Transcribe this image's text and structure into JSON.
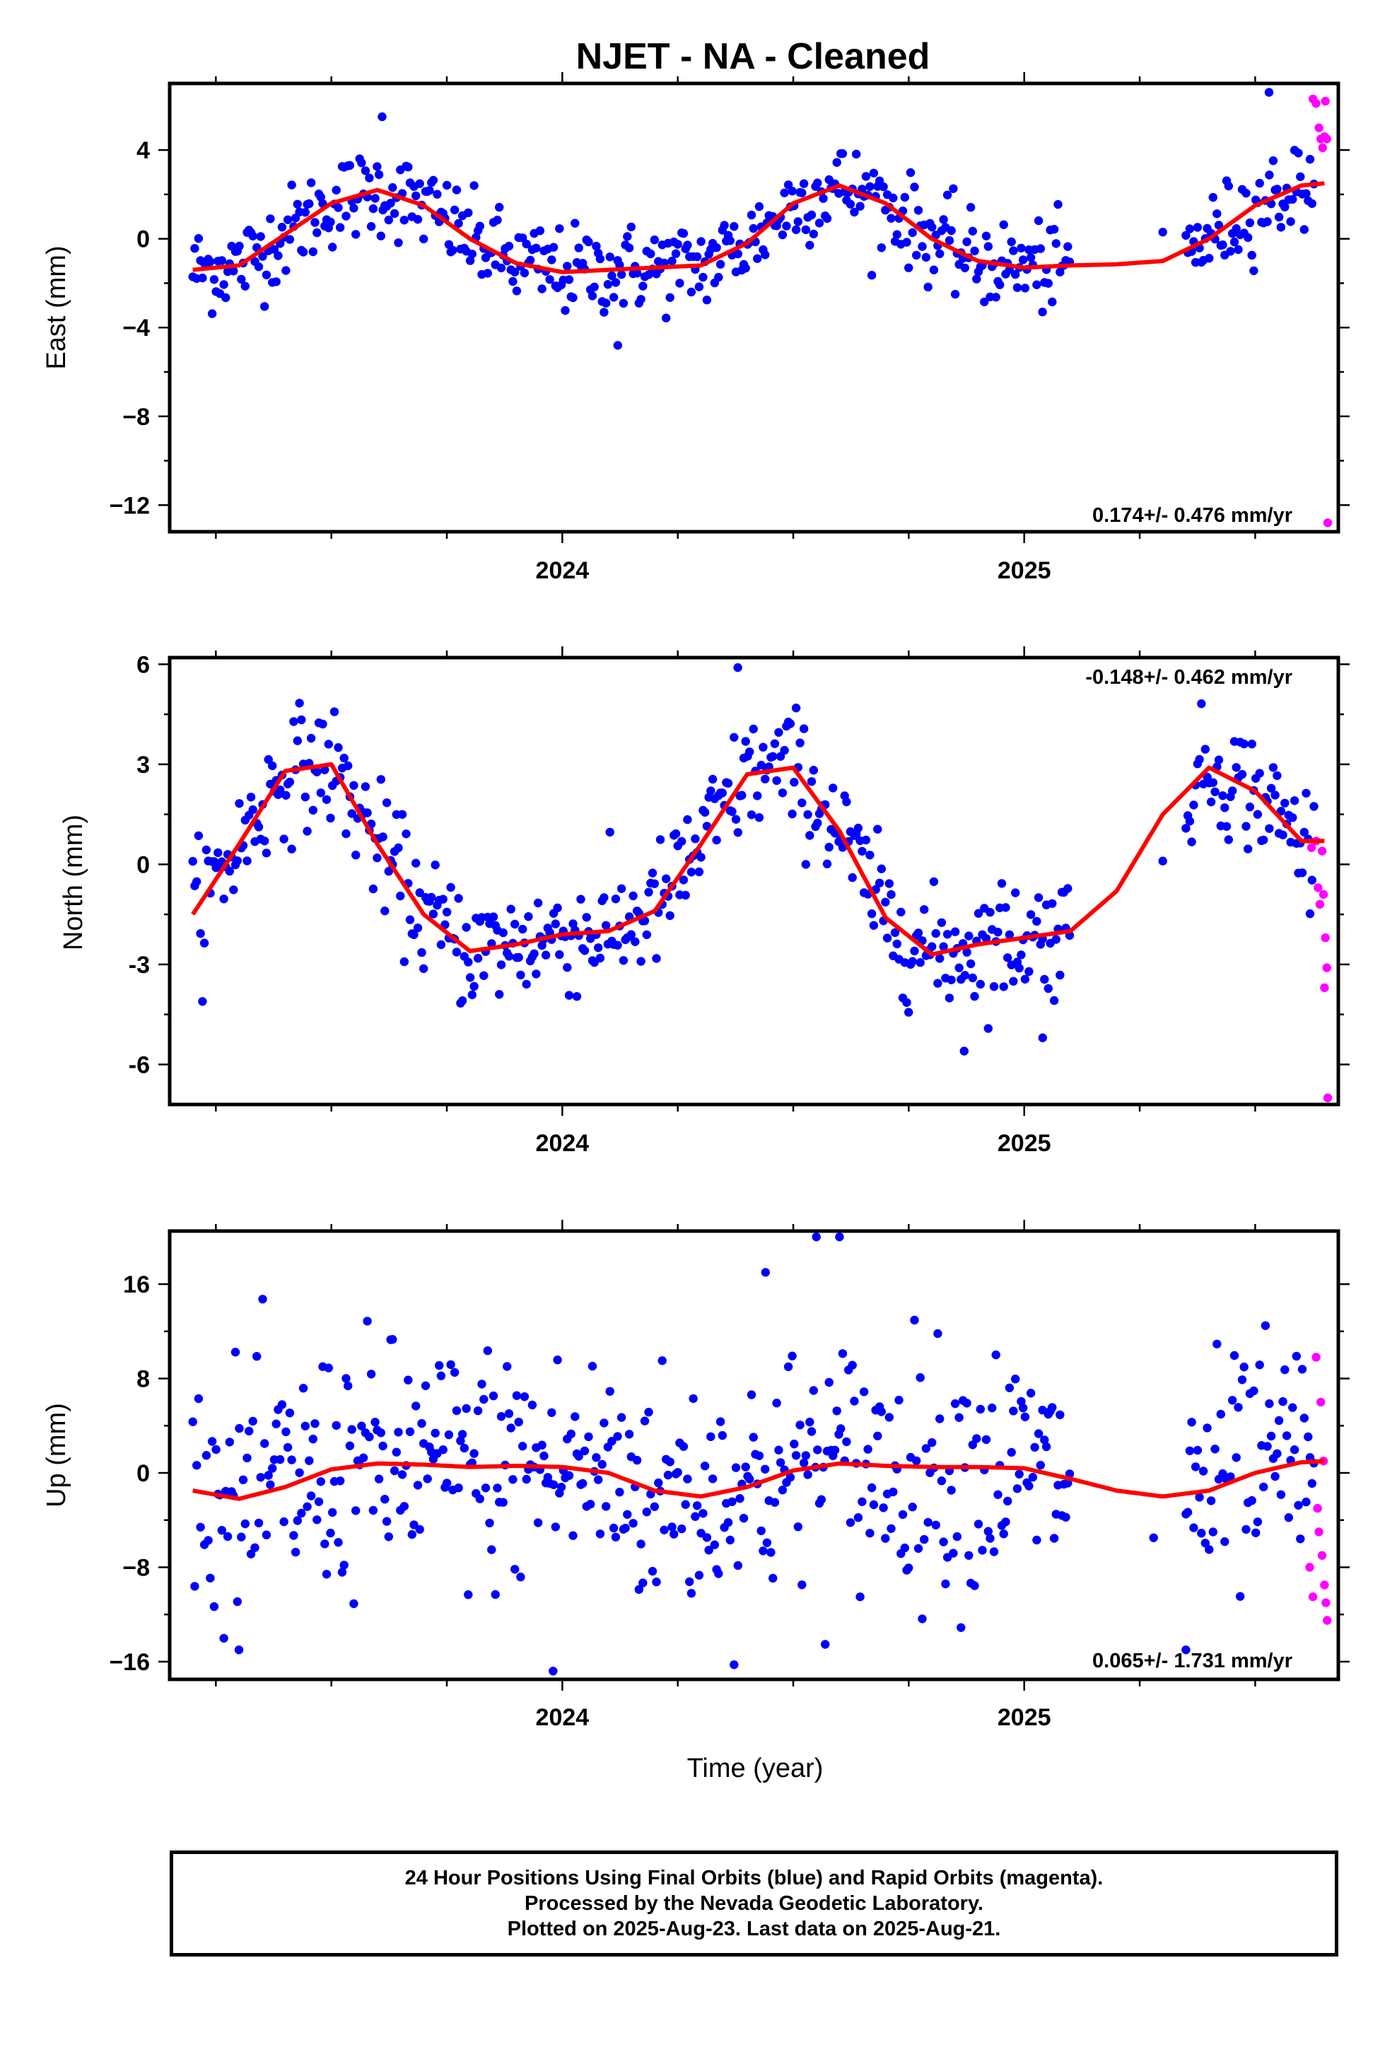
{
  "title": "NJET  - NA - Cleaned",
  "footer": {
    "lines": [
      "24 Hour Positions Using Final Orbits (blue) and Rapid Orbits (magenta).",
      "Processed by the Nevada Geodetic Laboratory.",
      "Plotted on 2025-Aug-23. Last data on 2025-Aug-21."
    ]
  },
  "colors": {
    "final_orbits": "#0000ff",
    "rapid_orbits": "#ff00ff",
    "fit_line": "#ff0000",
    "frame": "#000000"
  },
  "chart_data": [
    {
      "type": "scatter",
      "ylabel": "East (mm)",
      "xlabel": "",
      "rate_text": "0.174+/- 0.476 mm/yr",
      "xlim": [
        2023.15,
        2025.68
      ],
      "ylim": [
        -13.2,
        7.0
      ],
      "xticks": [
        2024,
        2025
      ],
      "yticks": [
        4,
        0,
        -4,
        -8,
        -12
      ],
      "ytick_labels": [
        "4",
        "0",
        "−4",
        "−8",
        "−12"
      ],
      "fit": {
        "x": [
          2023.2,
          2023.3,
          2023.4,
          2023.5,
          2023.6,
          2023.7,
          2023.8,
          2023.9,
          2024.0,
          2024.1,
          2024.2,
          2024.3,
          2024.4,
          2024.5,
          2024.6,
          2024.7,
          2024.8,
          2024.9,
          2025.0,
          2025.1,
          2025.2,
          2025.3,
          2025.4,
          2025.5,
          2025.6,
          2025.65
        ],
        "y": [
          -1.4,
          -1.2,
          0.2,
          1.6,
          2.2,
          1.5,
          0.0,
          -1.1,
          -1.5,
          -1.4,
          -1.3,
          -1.2,
          -0.2,
          1.6,
          2.4,
          1.6,
          0.0,
          -1.0,
          -1.3,
          -1.2,
          -1.15,
          -1.0,
          0.0,
          1.5,
          2.4,
          2.5
        ]
      },
      "final_series": {
        "amplitude": 2.0,
        "phase": 2023.405,
        "offset": 0.2,
        "noise": 1.0,
        "segments": [
          [
            2023.2,
            2025.1,
            0.0042
          ],
          [
            2025.35,
            2025.63,
            0.0042
          ]
        ],
        "extra_points": [
          [
            2025.3,
            0.3
          ],
          [
            2025.53,
            6.6
          ],
          [
            2023.61,
            5.5
          ],
          [
            2024.12,
            -4.8
          ]
        ]
      },
      "rapid_points": [
        [
          2025.625,
          6.3
        ],
        [
          2025.632,
          6.1
        ],
        [
          2025.638,
          5.0
        ],
        [
          2025.642,
          4.5
        ],
        [
          2025.646,
          4.1
        ],
        [
          2025.65,
          4.6
        ],
        [
          2025.652,
          6.2
        ],
        [
          2025.655,
          4.5
        ],
        [
          2025.657,
          -12.8
        ]
      ]
    },
    {
      "type": "scatter",
      "ylabel": "North (mm)",
      "xlabel": "",
      "rate_text": "-0.148+/- 0.462 mm/yr",
      "xlim": [
        2023.15,
        2025.68
      ],
      "ylim": [
        -7.2,
        6.2
      ],
      "xticks": [
        2024,
        2025
      ],
      "yticks": [
        6,
        3,
        0,
        -3,
        -6
      ],
      "ytick_labels": [
        "6",
        "3",
        "0",
        "-3",
        "-6"
      ],
      "fit": {
        "x": [
          2023.2,
          2023.3,
          2023.4,
          2023.5,
          2023.6,
          2023.7,
          2023.8,
          2023.9,
          2024.0,
          2024.1,
          2024.2,
          2024.3,
          2024.4,
          2024.5,
          2024.6,
          2024.7,
          2024.8,
          2024.9,
          2025.0,
          2025.1,
          2025.2,
          2025.3,
          2025.4,
          2025.5,
          2025.6,
          2025.65
        ],
        "y": [
          -1.5,
          0.6,
          2.8,
          3.0,
          0.6,
          -1.5,
          -2.6,
          -2.4,
          -2.1,
          -2.0,
          -1.4,
          0.6,
          2.7,
          2.9,
          1.0,
          -1.6,
          -2.7,
          -2.4,
          -2.2,
          -2.0,
          -0.8,
          1.5,
          2.9,
          2.2,
          0.7,
          0.7
        ]
      },
      "final_series": {
        "amplitude": 2.9,
        "phase": 2023.285,
        "offset": 0.0,
        "noise": 0.9,
        "segments": [
          [
            2023.2,
            2025.1,
            0.0042
          ],
          [
            2025.35,
            2025.63,
            0.0042
          ]
        ],
        "extra_points": [
          [
            2025.3,
            0.1
          ],
          [
            2024.38,
            5.9
          ],
          [
            2024.87,
            -5.6
          ],
          [
            2025.04,
            -5.2
          ]
        ]
      },
      "rapid_points": [
        [
          2025.622,
          0.5
        ],
        [
          2025.632,
          0.7
        ],
        [
          2025.636,
          -0.7
        ],
        [
          2025.64,
          -1.2
        ],
        [
          2025.645,
          0.4
        ],
        [
          2025.648,
          -0.9
        ],
        [
          2025.652,
          -2.2
        ],
        [
          2025.655,
          -3.1
        ],
        [
          2025.65,
          -3.7
        ],
        [
          2025.657,
          -7.0
        ]
      ]
    },
    {
      "type": "scatter",
      "ylabel": "Up (mm)",
      "xlabel": "Time (year)",
      "rate_text": "0.065+/- 1.731 mm/yr",
      "xlim": [
        2023.15,
        2025.68
      ],
      "ylim": [
        -17.5,
        20.5
      ],
      "xticks": [
        2024,
        2025
      ],
      "yticks": [
        16,
        8,
        0,
        -8,
        -16
      ],
      "ytick_labels": [
        "16",
        "8",
        "0",
        "−8",
        "−16"
      ],
      "fit": {
        "x": [
          2023.2,
          2023.3,
          2023.4,
          2023.5,
          2023.6,
          2023.7,
          2023.8,
          2023.9,
          2024.0,
          2024.1,
          2024.2,
          2024.3,
          2024.4,
          2024.5,
          2024.6,
          2024.7,
          2024.8,
          2024.9,
          2025.0,
          2025.1,
          2025.2,
          2025.3,
          2025.4,
          2025.5,
          2025.6,
          2025.65
        ],
        "y": [
          -1.5,
          -2.2,
          -1.2,
          0.3,
          0.8,
          0.7,
          0.5,
          0.6,
          0.5,
          0.0,
          -1.5,
          -2.0,
          -1.2,
          0.2,
          0.8,
          0.6,
          0.5,
          0.5,
          0.4,
          -0.5,
          -1.5,
          -2.0,
          -1.5,
          0.0,
          0.9,
          1.0
        ]
      },
      "final_series": {
        "amplitude": 1.0,
        "phase": 2023.4,
        "offset": -0.5,
        "noise": 5.2,
        "segments": [
          [
            2023.2,
            2025.1,
            0.0042
          ],
          [
            2025.35,
            2025.63,
            0.0042
          ]
        ],
        "extra_points": [
          [
            2025.28,
            -5.5
          ],
          [
            2024.44,
            17.0
          ],
          [
            2024.55,
            20.0
          ],
          [
            2024.6,
            20.0
          ],
          [
            2023.98,
            -16.8
          ],
          [
            2023.3,
            -15.0
          ],
          [
            2025.35,
            -15.0
          ]
        ]
      },
      "rapid_points": [
        [
          2025.618,
          -8.0
        ],
        [
          2025.625,
          -10.5
        ],
        [
          2025.632,
          9.8
        ],
        [
          2025.635,
          -3.0
        ],
        [
          2025.638,
          -5.0
        ],
        [
          2025.642,
          6.0
        ],
        [
          2025.645,
          -7.0
        ],
        [
          2025.648,
          1.0
        ],
        [
          2025.65,
          -9.5
        ],
        [
          2025.653,
          -11.0
        ],
        [
          2025.656,
          -12.5
        ]
      ]
    }
  ]
}
